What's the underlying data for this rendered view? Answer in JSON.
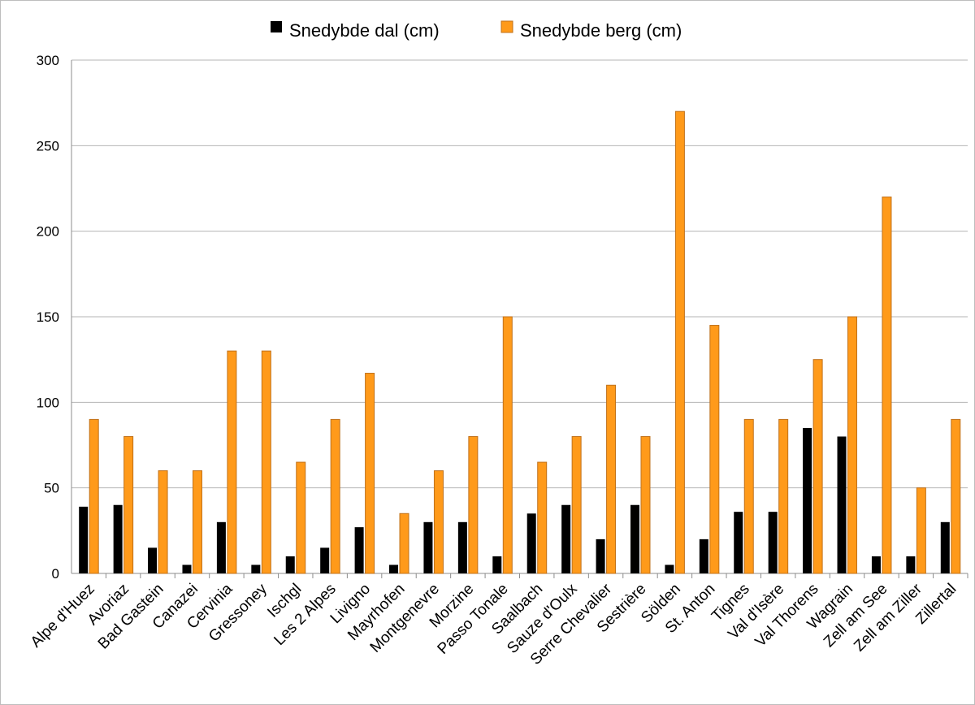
{
  "chart_data": {
    "type": "bar",
    "title": "",
    "xlabel": "",
    "ylabel": "",
    "ylim": [
      0,
      300
    ],
    "yticks": [
      0,
      50,
      100,
      150,
      200,
      250,
      300
    ],
    "grid": true,
    "legend_position": "top-center",
    "categories": [
      "Alpe d'Huez",
      "Avoriaz",
      "Bad Gastein",
      "Canazei",
      "Cervinia",
      "Gressoney",
      "Ischgl",
      "Les 2 Alpes",
      "Livigno",
      "Mayrhofen",
      "Montgenevre",
      "Morzine",
      "Passo Tonale",
      "Saalbach",
      "Sauze d'Oulx",
      "Serre Chevalier",
      "Sestrière",
      "Sölden",
      "St. Anton",
      "Tignes",
      "Val d'Isère",
      "Val Thorens",
      "Wagrain",
      "Zell am See",
      "Zell am Ziller",
      "Zillertal"
    ],
    "series": [
      {
        "name": "Snedybde dal (cm)",
        "color": "#000000",
        "values": [
          39,
          40,
          15,
          5,
          30,
          5,
          10,
          15,
          27,
          5,
          30,
          30,
          10,
          35,
          40,
          20,
          40,
          5,
          20,
          36,
          36,
          85,
          80,
          10,
          10,
          30
        ]
      },
      {
        "name": "Snedybde berg (cm)",
        "color": "#ff9a1a",
        "stroke": "#c0711a",
        "values": [
          90,
          80,
          60,
          60,
          130,
          130,
          65,
          90,
          117,
          35,
          60,
          80,
          150,
          65,
          80,
          110,
          80,
          270,
          145,
          90,
          90,
          125,
          150,
          220,
          50,
          90
        ]
      }
    ]
  }
}
